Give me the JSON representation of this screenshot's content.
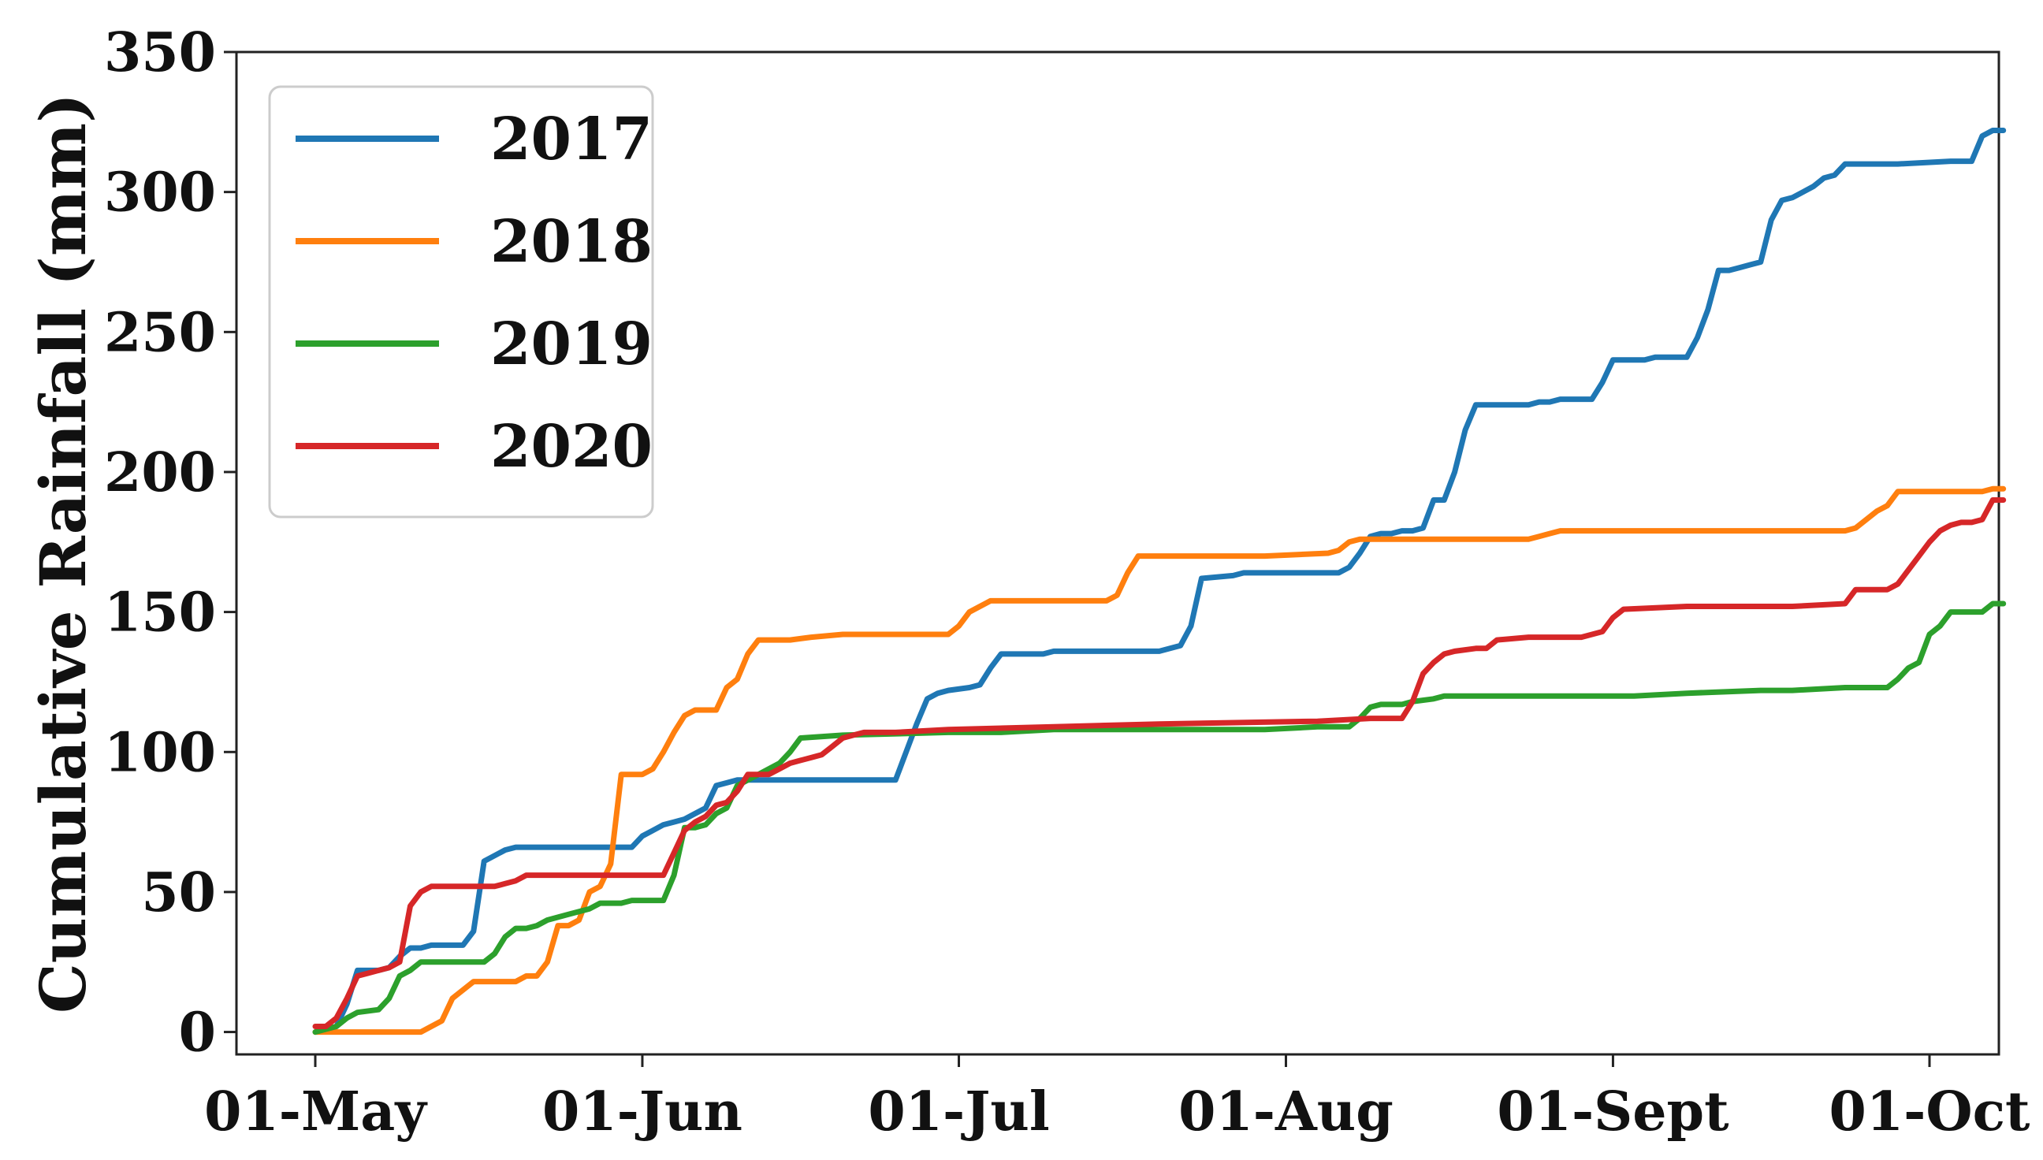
{
  "chart_data": {
    "type": "line",
    "title": "",
    "xlabel": "",
    "ylabel": "Cumulative Rainfall (mm)",
    "x_ticks": [
      "01-May",
      "01-Jun",
      "01-Jul",
      "01-Aug",
      "01-Sept",
      "01-Oct"
    ],
    "ylim": [
      -8,
      350
    ],
    "y_ticks": [
      0,
      50,
      100,
      150,
      200,
      250,
      300,
      350
    ],
    "grid": false,
    "legend_position": "top-left",
    "series": [
      {
        "name": "2017",
        "color": "#1f77b4",
        "points": [
          [
            0,
            0
          ],
          [
            2,
            2
          ],
          [
            3,
            10
          ],
          [
            4,
            22
          ],
          [
            6,
            22
          ],
          [
            7,
            23
          ],
          [
            8,
            27
          ],
          [
            9,
            30
          ],
          [
            10,
            30
          ],
          [
            11,
            31
          ],
          [
            14,
            31
          ],
          [
            15,
            36
          ],
          [
            16,
            61
          ],
          [
            17,
            63
          ],
          [
            18,
            65
          ],
          [
            19,
            66
          ],
          [
            28,
            66
          ],
          [
            30,
            66
          ],
          [
            31,
            70
          ],
          [
            32,
            72
          ],
          [
            33,
            74
          ],
          [
            34,
            75
          ],
          [
            35,
            76
          ],
          [
            36,
            78
          ],
          [
            37,
            80
          ],
          [
            38,
            88
          ],
          [
            39,
            89
          ],
          [
            40,
            90
          ],
          [
            55,
            90
          ],
          [
            56,
            100
          ],
          [
            57,
            110
          ],
          [
            58,
            119
          ],
          [
            59,
            121
          ],
          [
            60,
            122
          ],
          [
            62,
            123
          ],
          [
            63,
            124
          ],
          [
            64,
            130
          ],
          [
            65,
            135
          ],
          [
            67,
            135
          ],
          [
            68,
            135
          ],
          [
            69,
            135
          ],
          [
            70,
            136
          ],
          [
            80,
            136
          ],
          [
            82,
            138
          ],
          [
            83,
            145
          ],
          [
            84,
            162
          ],
          [
            87,
            163
          ],
          [
            88,
            164
          ],
          [
            97,
            164
          ],
          [
            98,
            166
          ],
          [
            99,
            171
          ],
          [
            100,
            177
          ],
          [
            101,
            178
          ],
          [
            102,
            178
          ],
          [
            103,
            179
          ],
          [
            104,
            179
          ],
          [
            105,
            180
          ],
          [
            106,
            190
          ],
          [
            107,
            190
          ],
          [
            108,
            200
          ],
          [
            109,
            215
          ],
          [
            110,
            224
          ],
          [
            115,
            224
          ],
          [
            116,
            225
          ],
          [
            117,
            225
          ],
          [
            118,
            226
          ],
          [
            121,
            226
          ],
          [
            122,
            232
          ],
          [
            123,
            240
          ],
          [
            126,
            240
          ],
          [
            127,
            241
          ],
          [
            130,
            241
          ],
          [
            131,
            248
          ],
          [
            132,
            258
          ],
          [
            133,
            272
          ],
          [
            134,
            272
          ],
          [
            135,
            273
          ],
          [
            136,
            274
          ],
          [
            137,
            275
          ],
          [
            138,
            290
          ],
          [
            139,
            297
          ],
          [
            140,
            298
          ],
          [
            141,
            300
          ],
          [
            142,
            302
          ],
          [
            143,
            305
          ],
          [
            144,
            306
          ],
          [
            145,
            310
          ],
          [
            146,
            310
          ],
          [
            149,
            310
          ],
          [
            150,
            310
          ],
          [
            155,
            311
          ],
          [
            157,
            311
          ],
          [
            158,
            320
          ],
          [
            159,
            322
          ],
          [
            160,
            322
          ]
        ]
      },
      {
        "name": "2018",
        "color": "#ff7f0e",
        "points": [
          [
            0,
            0
          ],
          [
            10,
            0
          ],
          [
            11,
            2
          ],
          [
            12,
            4
          ],
          [
            13,
            12
          ],
          [
            14,
            15
          ],
          [
            15,
            18
          ],
          [
            19,
            18
          ],
          [
            20,
            20
          ],
          [
            21,
            20
          ],
          [
            22,
            25
          ],
          [
            23,
            38
          ],
          [
            24,
            38
          ],
          [
            25,
            40
          ],
          [
            26,
            50
          ],
          [
            27,
            52
          ],
          [
            28,
            60
          ],
          [
            29,
            92
          ],
          [
            30,
            92
          ],
          [
            31,
            92
          ],
          [
            32,
            94
          ],
          [
            33,
            100
          ],
          [
            34,
            107
          ],
          [
            35,
            113
          ],
          [
            36,
            115
          ],
          [
            38,
            115
          ],
          [
            39,
            123
          ],
          [
            40,
            126
          ],
          [
            41,
            135
          ],
          [
            42,
            140
          ],
          [
            45,
            140
          ],
          [
            47,
            141
          ],
          [
            50,
            142
          ],
          [
            60,
            142
          ],
          [
            61,
            145
          ],
          [
            62,
            150
          ],
          [
            63,
            152
          ],
          [
            64,
            154
          ],
          [
            68,
            154
          ],
          [
            70,
            154
          ],
          [
            75,
            154
          ],
          [
            76,
            156
          ],
          [
            77,
            164
          ],
          [
            78,
            170
          ],
          [
            85,
            170
          ],
          [
            90,
            170
          ],
          [
            96,
            171
          ],
          [
            97,
            172
          ],
          [
            98,
            175
          ],
          [
            99,
            176
          ],
          [
            115,
            176
          ],
          [
            116,
            177
          ],
          [
            117,
            178
          ],
          [
            118,
            179
          ],
          [
            125,
            179
          ],
          [
            145,
            179
          ],
          [
            146,
            180
          ],
          [
            148,
            186
          ],
          [
            149,
            188
          ],
          [
            150,
            193
          ],
          [
            158,
            193
          ],
          [
            159,
            194
          ],
          [
            160,
            194
          ]
        ]
      },
      {
        "name": "2019",
        "color": "#2ca02c",
        "points": [
          [
            0,
            0
          ],
          [
            2,
            2
          ],
          [
            3,
            5
          ],
          [
            4,
            7
          ],
          [
            6,
            8
          ],
          [
            7,
            12
          ],
          [
            8,
            20
          ],
          [
            9,
            22
          ],
          [
            10,
            25
          ],
          [
            16,
            25
          ],
          [
            17,
            28
          ],
          [
            18,
            34
          ],
          [
            19,
            37
          ],
          [
            20,
            37
          ],
          [
            21,
            38
          ],
          [
            22,
            40
          ],
          [
            23,
            41
          ],
          [
            24,
            42
          ],
          [
            25,
            43
          ],
          [
            26,
            44
          ],
          [
            27,
            46
          ],
          [
            29,
            46
          ],
          [
            30,
            47
          ],
          [
            33,
            47
          ],
          [
            34,
            56
          ],
          [
            35,
            73
          ],
          [
            36,
            73
          ],
          [
            37,
            74
          ],
          [
            38,
            78
          ],
          [
            39,
            80
          ],
          [
            40,
            88
          ],
          [
            41,
            90
          ],
          [
            42,
            92
          ],
          [
            43,
            94
          ],
          [
            44,
            96
          ],
          [
            45,
            100
          ],
          [
            46,
            105
          ],
          [
            50,
            106
          ],
          [
            60,
            107
          ],
          [
            65,
            107
          ],
          [
            70,
            108
          ],
          [
            75,
            108
          ],
          [
            85,
            108
          ],
          [
            90,
            108
          ],
          [
            95,
            109
          ],
          [
            98,
            109
          ],
          [
            99,
            112
          ],
          [
            100,
            116
          ],
          [
            101,
            117
          ],
          [
            103,
            117
          ],
          [
            104,
            118
          ],
          [
            106,
            119
          ],
          [
            107,
            120
          ],
          [
            110,
            120
          ],
          [
            111,
            120
          ],
          [
            125,
            120
          ],
          [
            130,
            121
          ],
          [
            137,
            122
          ],
          [
            140,
            122
          ],
          [
            145,
            123
          ],
          [
            149,
            123
          ],
          [
            150,
            126
          ],
          [
            151,
            130
          ],
          [
            152,
            132
          ],
          [
            153,
            142
          ],
          [
            154,
            145
          ],
          [
            155,
            150
          ],
          [
            158,
            150
          ],
          [
            159,
            153
          ],
          [
            160,
            153
          ]
        ]
      },
      {
        "name": "2020",
        "color": "#d62728",
        "points": [
          [
            0,
            2
          ],
          [
            1,
            2
          ],
          [
            2,
            5
          ],
          [
            3,
            12
          ],
          [
            4,
            20
          ],
          [
            5,
            21
          ],
          [
            6,
            22
          ],
          [
            7,
            23
          ],
          [
            8,
            25
          ],
          [
            9,
            45
          ],
          [
            10,
            50
          ],
          [
            11,
            52
          ],
          [
            17,
            52
          ],
          [
            18,
            53
          ],
          [
            19,
            54
          ],
          [
            20,
            56
          ],
          [
            26,
            56
          ],
          [
            28,
            56
          ],
          [
            33,
            56
          ],
          [
            34,
            64
          ],
          [
            35,
            72
          ],
          [
            36,
            75
          ],
          [
            37,
            77
          ],
          [
            38,
            81
          ],
          [
            39,
            82
          ],
          [
            40,
            86
          ],
          [
            41,
            92
          ],
          [
            43,
            92
          ],
          [
            44,
            94
          ],
          [
            45,
            96
          ],
          [
            46,
            97
          ],
          [
            47,
            98
          ],
          [
            48,
            99
          ],
          [
            49,
            102
          ],
          [
            50,
            105
          ],
          [
            51,
            106
          ],
          [
            52,
            107
          ],
          [
            55,
            107
          ],
          [
            60,
            108
          ],
          [
            70,
            109
          ],
          [
            80,
            110
          ],
          [
            95,
            111
          ],
          [
            100,
            112
          ],
          [
            103,
            112
          ],
          [
            104,
            118
          ],
          [
            105,
            128
          ],
          [
            106,
            132
          ],
          [
            107,
            135
          ],
          [
            108,
            136
          ],
          [
            110,
            137
          ],
          [
            111,
            137
          ],
          [
            112,
            140
          ],
          [
            115,
            141
          ],
          [
            120,
            141
          ],
          [
            122,
            143
          ],
          [
            123,
            148
          ],
          [
            124,
            151
          ],
          [
            130,
            152
          ],
          [
            137,
            152
          ],
          [
            140,
            152
          ],
          [
            145,
            153
          ],
          [
            146,
            158
          ],
          [
            149,
            158
          ],
          [
            150,
            160
          ],
          [
            152,
            170
          ],
          [
            153,
            175
          ],
          [
            154,
            179
          ],
          [
            155,
            181
          ],
          [
            156,
            182
          ],
          [
            157,
            182
          ],
          [
            158,
            183
          ],
          [
            159,
            190
          ],
          [
            160,
            190
          ]
        ]
      }
    ]
  }
}
